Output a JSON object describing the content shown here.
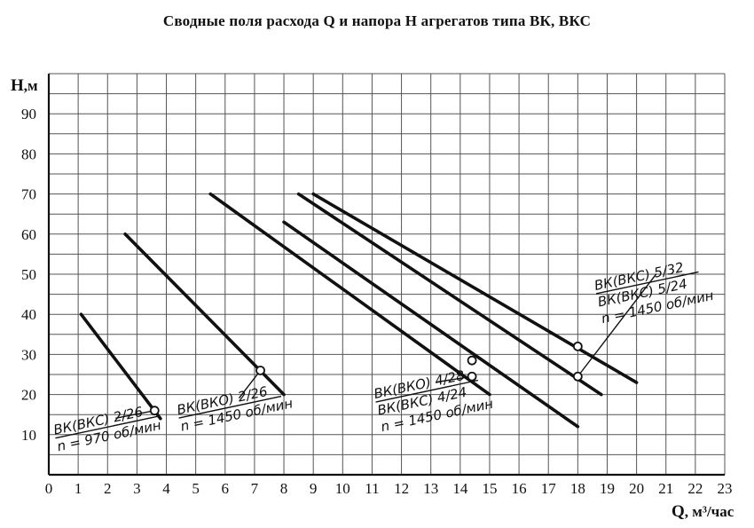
{
  "chart_data": {
    "type": "line",
    "title": "Сводные поля расхода Q и напора H агрегатов типа ВК, ВКС",
    "ylabel_name": "H",
    "ylabel_unit": ",м",
    "xlabel_name": "Q",
    "xlabel_unit": ", м³/час",
    "xlim": [
      0,
      23
    ],
    "ylim": [
      0,
      100
    ],
    "x_ticks": [
      "0",
      "1",
      "2",
      "3",
      "4",
      "5",
      "6",
      "7",
      "8",
      "9",
      "10",
      "11",
      "12",
      "13",
      "14",
      "15",
      "16",
      "17",
      "18",
      "19",
      "20",
      "21",
      "22",
      "23"
    ],
    "y_ticks": [
      "10",
      "20",
      "30",
      "40",
      "50",
      "60",
      "70",
      "80",
      "90"
    ],
    "grid": true,
    "series": [
      {
        "x": [
          1.1,
          3.8
        ],
        "y": [
          40,
          14
        ]
      },
      {
        "x": [
          2.6,
          8.0
        ],
        "y": [
          60,
          20
        ]
      },
      {
        "x": [
          5.5,
          15.0
        ],
        "y": [
          70,
          20
        ]
      },
      {
        "x": [
          8.0,
          18.0
        ],
        "y": [
          63,
          12
        ]
      },
      {
        "x": [
          8.5,
          18.8
        ],
        "y": [
          70,
          20
        ]
      },
      {
        "x": [
          9.0,
          20.0
        ],
        "y": [
          70,
          23
        ]
      }
    ],
    "points": [
      {
        "x": 3.6,
        "y": 16
      },
      {
        "x": 7.2,
        "y": 26
      },
      {
        "x": 14.4,
        "y": 28.5
      },
      {
        "x": 14.4,
        "y": 24.5
      },
      {
        "x": 18.0,
        "y": 32
      },
      {
        "x": 18.0,
        "y": 24.5
      }
    ],
    "annotations": [
      {
        "lines": [
          "ВК(ВКС) 2/26",
          "n = 970 об/мин"
        ],
        "x": 0.2,
        "y": 10,
        "leader_to": [
          3.6,
          16
        ]
      },
      {
        "lines": [
          "ВК(ВКО) 2/26",
          "n = 1450 об/мин"
        ],
        "x": 4.4,
        "y": 15,
        "leader_to": [
          7.2,
          26
        ]
      },
      {
        "lines": [
          "ВК(ВКО) 4/28",
          "ВК(ВКС) 4/24",
          "n = 1450 об/мин"
        ],
        "x": 11.1,
        "y": 19,
        "leader_to": [
          14.4,
          24.5
        ]
      },
      {
        "lines": [
          "ВК(ВКС) 5/32",
          "ВК(ВКС) 5/24",
          "n = 1450 об/мин"
        ],
        "x": 18.6,
        "y": 46,
        "leader_to": [
          18.0,
          24.5
        ]
      }
    ]
  }
}
